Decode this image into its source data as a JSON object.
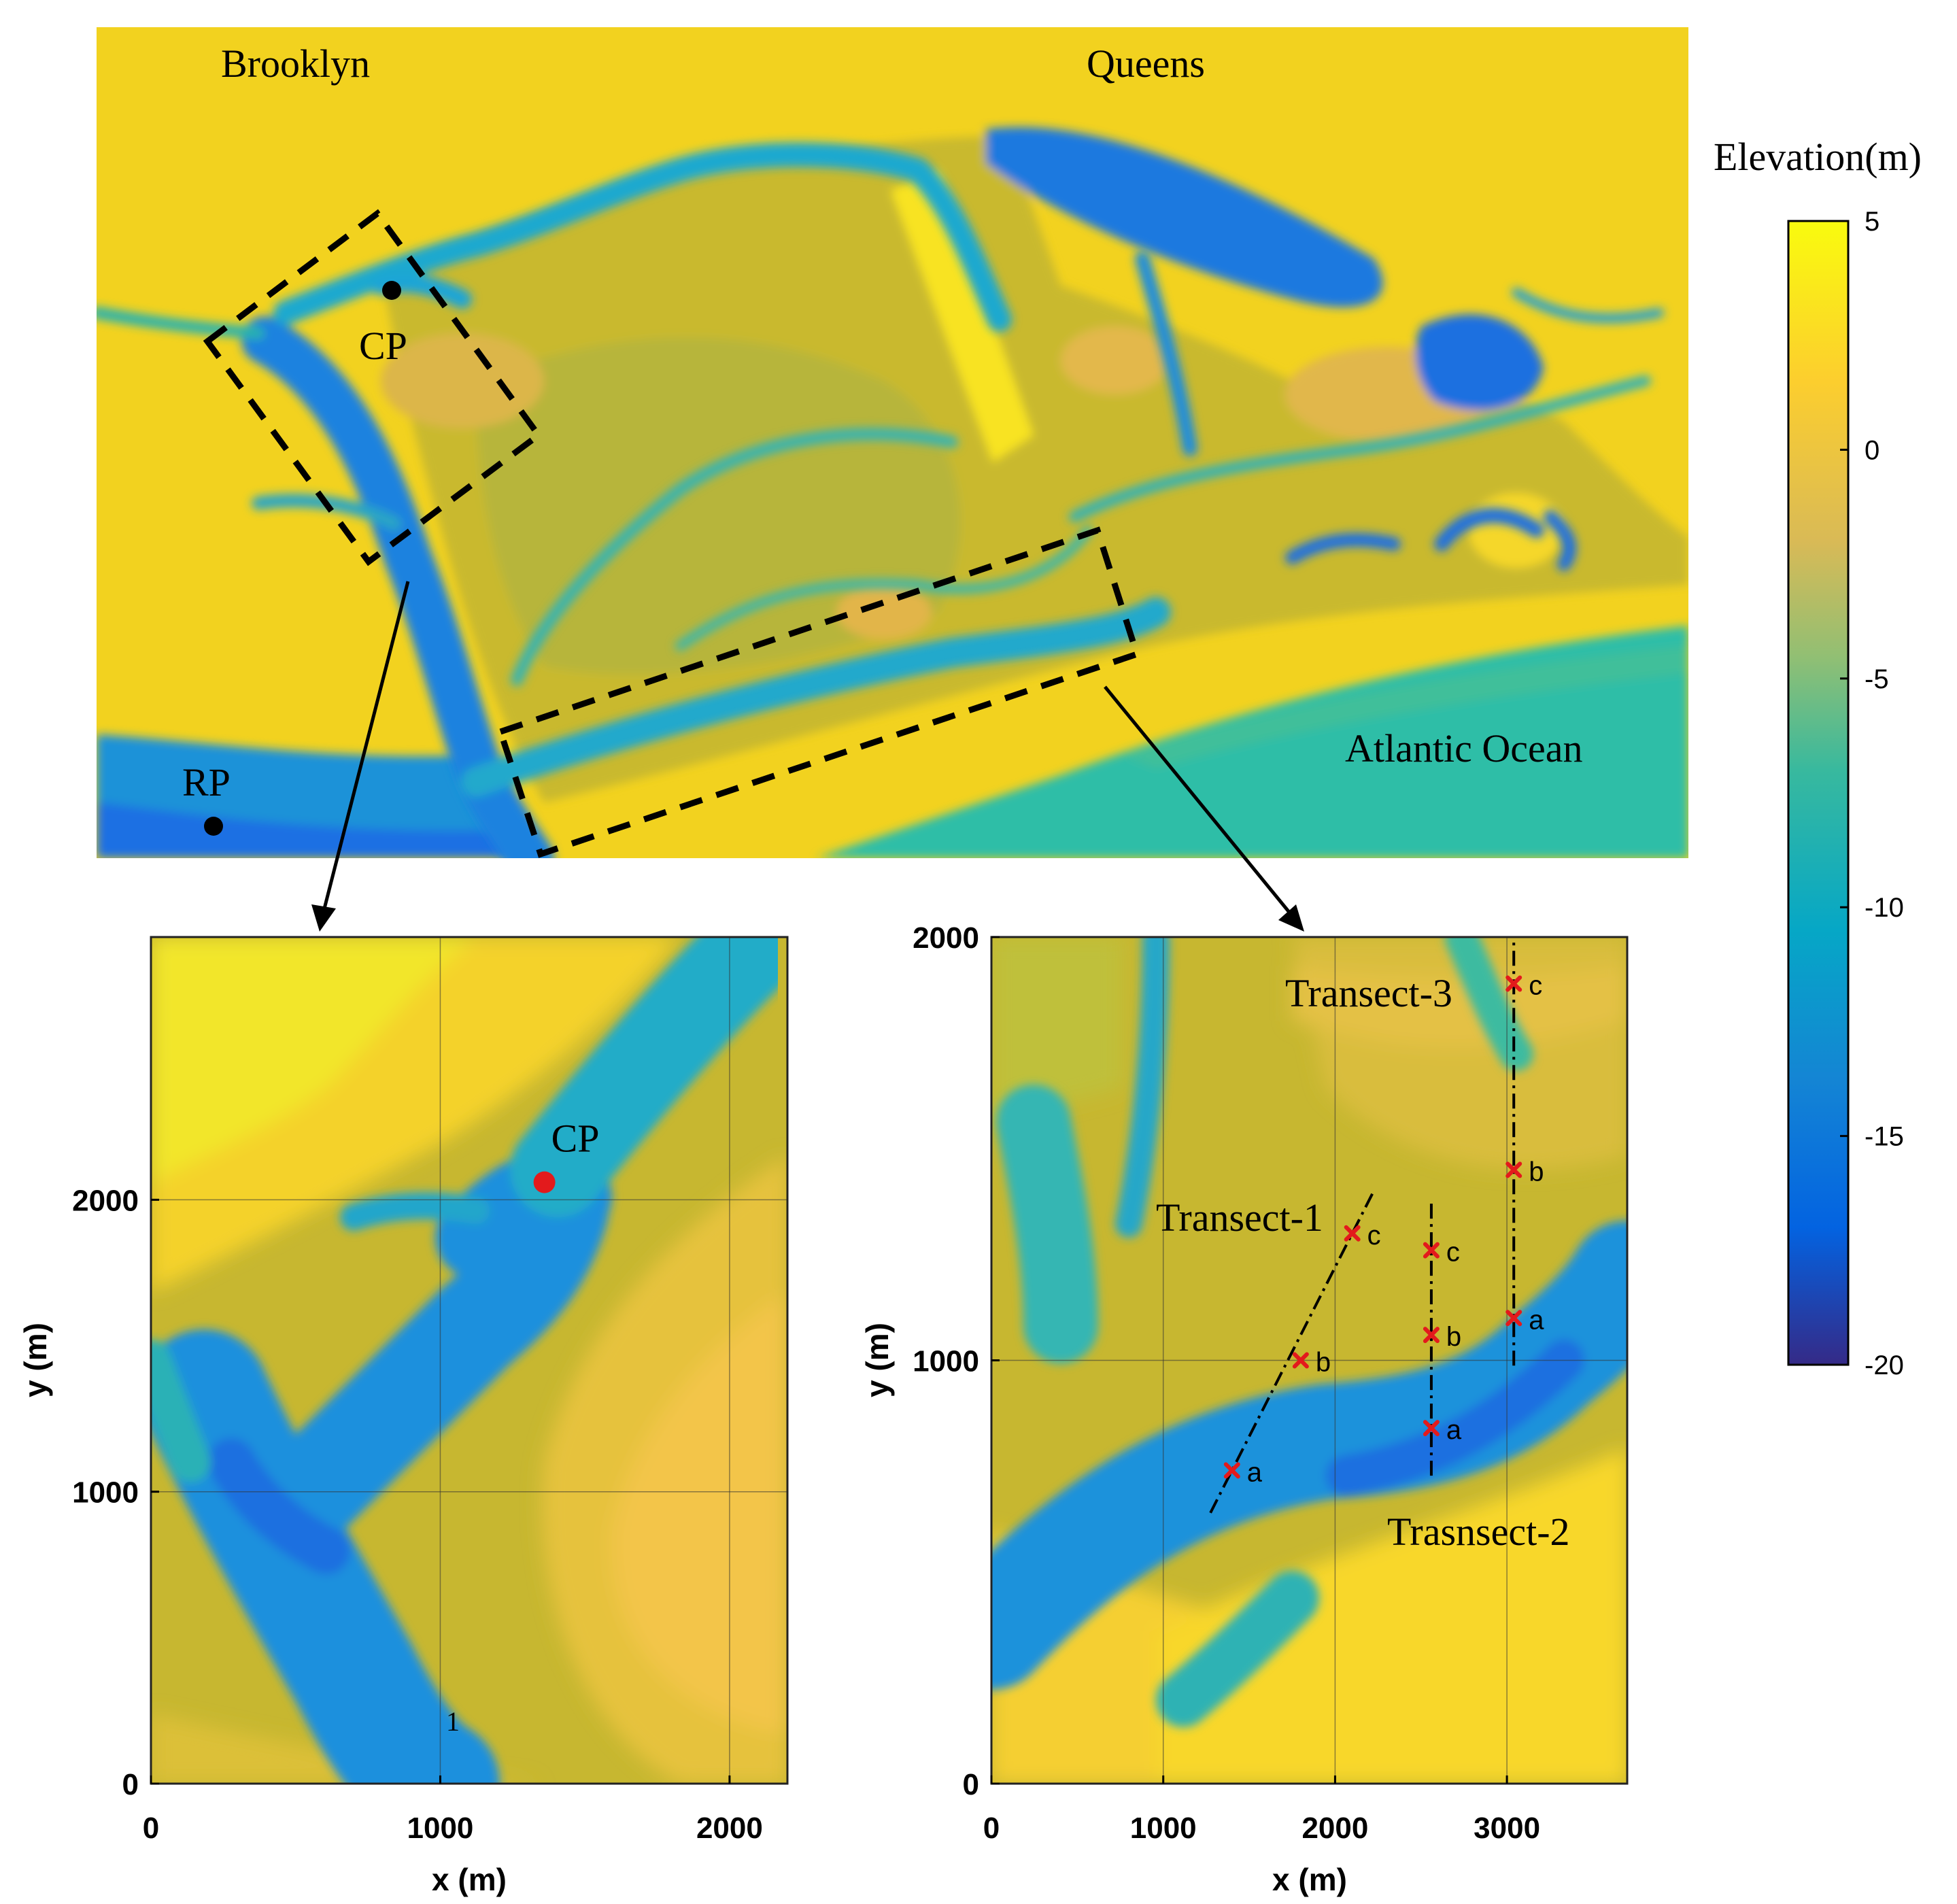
{
  "overview_map": {
    "place_labels": [
      "Brooklyn",
      "Queens",
      "Atlantic Ocean"
    ],
    "point_labels": [
      "CP",
      "RP"
    ]
  },
  "colorbar": {
    "title": "Elevation(m)",
    "tick_labels": [
      "5",
      "0",
      "-5",
      "-10",
      "-15",
      "-20"
    ],
    "range": [
      -20,
      5
    ],
    "colormap": "parula",
    "colors": [
      "#352a87",
      "#0363e1",
      "#1485d4",
      "#06a7c6",
      "#38b99e",
      "#92bf73",
      "#d9ba56",
      "#fcce2e",
      "#f9fb0e"
    ]
  },
  "inset_left": {
    "x_label": "x (m)",
    "y_label": "y (m)",
    "x_ticks": [
      "0",
      "1000",
      "2000"
    ],
    "y_ticks": [
      "0",
      "1000",
      "2000"
    ],
    "x_range": [
      0,
      2200
    ],
    "y_range": [
      0,
      2900
    ],
    "point": {
      "label": "CP",
      "x": 1360,
      "y": 2060
    },
    "stray_label": "1",
    "grid": true
  },
  "inset_right": {
    "x_label": "x (m)",
    "y_label": "y (m)",
    "x_ticks": [
      "0",
      "1000",
      "2000",
      "3000"
    ],
    "y_ticks": [
      "0",
      "1000",
      "2000"
    ],
    "x_range": [
      0,
      3700
    ],
    "y_range": [
      0,
      2000
    ],
    "grid": true,
    "transects": [
      {
        "label": "Transect-1",
        "points": [
          {
            "name": "a",
            "x": 1400,
            "y": 740
          },
          {
            "name": "b",
            "x": 1800,
            "y": 1000
          },
          {
            "name": "c",
            "x": 2100,
            "y": 1300
          }
        ]
      },
      {
        "label": "Trasnsect-2",
        "points": [
          {
            "name": "a",
            "x": 2560,
            "y": 840
          },
          {
            "name": "b",
            "x": 2560,
            "y": 1060
          },
          {
            "name": "c",
            "x": 2560,
            "y": 1260
          }
        ]
      },
      {
        "label": "Transect-3",
        "points": [
          {
            "name": "a",
            "x": 3040,
            "y": 1100
          },
          {
            "name": "b",
            "x": 3040,
            "y": 1450
          },
          {
            "name": "c",
            "x": 3040,
            "y": 1890
          }
        ]
      }
    ]
  }
}
